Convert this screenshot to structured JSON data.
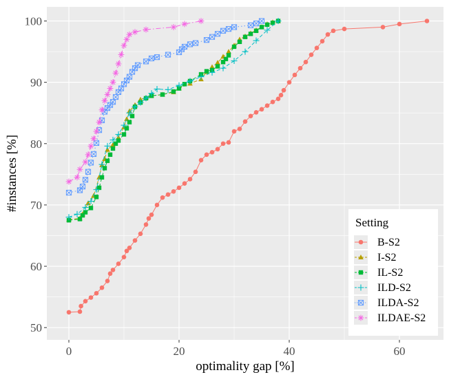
{
  "chart_data": {
    "type": "line",
    "title": "",
    "xlabel": "optimality gap [%]",
    "ylabel": "#instances [%]",
    "xlim": [
      -4,
      68
    ],
    "ylim": [
      48,
      102.3
    ],
    "xticks": [
      0,
      20,
      40,
      60
    ],
    "yticks": [
      50,
      60,
      70,
      80,
      90,
      100
    ],
    "grid": true,
    "legend": {
      "title": "Setting",
      "position": "bottom-right"
    },
    "series": [
      {
        "name": "B-S2",
        "color": "#F8766D",
        "marker": "circle",
        "linestyle": "solid",
        "x": [
          0,
          2,
          2.2,
          3,
          4,
          5,
          6,
          7,
          7.5,
          8,
          9,
          10,
          10.5,
          11,
          12,
          13,
          14,
          14.5,
          15,
          16,
          17,
          18,
          19,
          20,
          21,
          22,
          23,
          24,
          25,
          26,
          27,
          28,
          29,
          30,
          31,
          32,
          33,
          34,
          35,
          36,
          37,
          38,
          38.5,
          39,
          40,
          41,
          42,
          43,
          44,
          45,
          46,
          47,
          48,
          50,
          57,
          60,
          65
        ],
        "y": [
          52.5,
          52.6,
          53.5,
          54.3,
          54.9,
          55.6,
          56.5,
          57.6,
          58.8,
          59.4,
          60.4,
          61.5,
          62.5,
          63.0,
          64.2,
          65.3,
          66.8,
          67.8,
          68.4,
          70.0,
          71.2,
          71.7,
          72.2,
          72.8,
          73.5,
          74.2,
          75.4,
          77.3,
          78.2,
          78.6,
          79.1,
          80.0,
          80.2,
          82.0,
          82.4,
          83.6,
          84.5,
          85.1,
          85.6,
          86.2,
          86.8,
          87.3,
          87.9,
          88.7,
          90.0,
          91.2,
          92.3,
          93.3,
          94.5,
          95.6,
          96.7,
          97.8,
          98.4,
          98.7,
          99.0,
          99.5,
          100.0
        ]
      },
      {
        "name": "I-S2",
        "color": "#B79F00",
        "marker": "triangle",
        "linestyle": "dashed",
        "x": [
          0,
          2,
          2.5,
          3.5,
          4.5,
          5.5,
          6,
          6.5,
          7,
          8,
          9,
          10,
          10.5,
          11,
          12,
          13,
          14,
          15,
          17,
          19,
          20,
          22,
          24,
          25,
          26,
          27,
          28,
          29,
          30,
          31,
          32,
          33,
          34,
          35,
          36,
          37,
          38
        ],
        "y": [
          67.6,
          67.8,
          68.5,
          70.3,
          71.5,
          74.5,
          76.5,
          77.5,
          79.0,
          79.8,
          81.0,
          82.7,
          84.0,
          85.3,
          86.3,
          87.2,
          87.5,
          87.8,
          88.0,
          88.4,
          89.0,
          89.8,
          90.5,
          91.7,
          92.5,
          93.2,
          94.2,
          95.0,
          96.0,
          97.0,
          97.5,
          98.0,
          98.5,
          99.0,
          99.5,
          99.8,
          100.0
        ]
      },
      {
        "name": "IL-S2",
        "color": "#00BA38",
        "marker": "square",
        "linestyle": "dashed",
        "x": [
          0,
          2,
          2.5,
          3,
          4,
          5,
          5.5,
          6,
          6.5,
          7,
          7.5,
          8,
          8.5,
          9,
          10,
          10.5,
          11,
          11.5,
          12,
          13,
          14,
          15,
          17,
          19,
          20,
          21,
          22,
          24,
          25,
          26,
          27,
          28,
          28.5,
          29,
          30,
          31,
          32,
          33,
          34,
          35,
          36,
          37,
          38
        ],
        "y": [
          67.5,
          67.7,
          68.3,
          68.8,
          69.5,
          71.3,
          72.8,
          74.5,
          76.0,
          77.2,
          78.2,
          79.2,
          80.0,
          80.5,
          81.5,
          82.5,
          83.5,
          84.5,
          86.0,
          86.7,
          87.4,
          87.8,
          88.0,
          88.5,
          89.0,
          89.7,
          90.2,
          91.3,
          91.8,
          92.0,
          92.6,
          93.3,
          93.8,
          94.4,
          95.8,
          96.6,
          97.4,
          97.9,
          98.4,
          99.0,
          99.4,
          99.7,
          100.0
        ]
      },
      {
        "name": "ILD-S2",
        "color": "#00BFC4",
        "marker": "plus",
        "linestyle": "dashed",
        "x": [
          0,
          1.5,
          3,
          4,
          5,
          6,
          7,
          8,
          9,
          10,
          11,
          12,
          13,
          14,
          15,
          16,
          18,
          20,
          22,
          24,
          26,
          28,
          30,
          32,
          34,
          36,
          38
        ],
        "y": [
          68.0,
          68.5,
          69.6,
          70.6,
          72.5,
          76.6,
          79.6,
          80.6,
          81.5,
          83.0,
          85.0,
          86.0,
          86.7,
          87.4,
          88.2,
          88.9,
          88.8,
          89.5,
          90.2,
          90.9,
          91.6,
          92.3,
          93.5,
          95.0,
          96.8,
          98.5,
          100.0
        ]
      },
      {
        "name": "ILDA-S2",
        "color": "#619CFF",
        "marker": "boxtimes",
        "linestyle": "dotted",
        "x": [
          0,
          2,
          2.5,
          3,
          3.5,
          4,
          4.5,
          5,
          5.5,
          6,
          6.5,
          7,
          7.5,
          8,
          8.5,
          9,
          9.5,
          10,
          10.5,
          11,
          11.5,
          12,
          12.5,
          14,
          15,
          16,
          18,
          20,
          20.5,
          21,
          22,
          23,
          25,
          26,
          27,
          28,
          29,
          30,
          33,
          34,
          35
        ],
        "y": [
          72.0,
          72.4,
          73.0,
          74.1,
          75.4,
          76.9,
          78.3,
          80.1,
          82.2,
          83.8,
          85.2,
          85.8,
          86.3,
          86.8,
          87.6,
          88.4,
          89.0,
          89.7,
          90.3,
          90.9,
          91.7,
          92.3,
          92.8,
          93.4,
          93.9,
          94.1,
          94.5,
          94.9,
          95.4,
          95.8,
          96.2,
          96.4,
          96.9,
          97.4,
          97.9,
          98.4,
          98.7,
          99.0,
          99.3,
          99.6,
          100.0
        ]
      },
      {
        "name": "ILDAE-S2",
        "color": "#F564E3",
        "marker": "star",
        "linestyle": "dashdot",
        "x": [
          0,
          1.5,
          2,
          3,
          3.5,
          4,
          4.5,
          5,
          5.5,
          6,
          6.5,
          7,
          7.5,
          8,
          8.5,
          9,
          9.5,
          10,
          10.5,
          11,
          12,
          14,
          19,
          21,
          24
        ],
        "y": [
          73.8,
          74.5,
          75.8,
          77.0,
          78.2,
          79.6,
          80.8,
          82.0,
          83.5,
          85.5,
          87.0,
          88.0,
          89.0,
          90.0,
          91.5,
          93.0,
          94.5,
          96.0,
          97.0,
          97.8,
          98.2,
          98.6,
          99.0,
          99.5,
          100.0
        ]
      }
    ]
  }
}
